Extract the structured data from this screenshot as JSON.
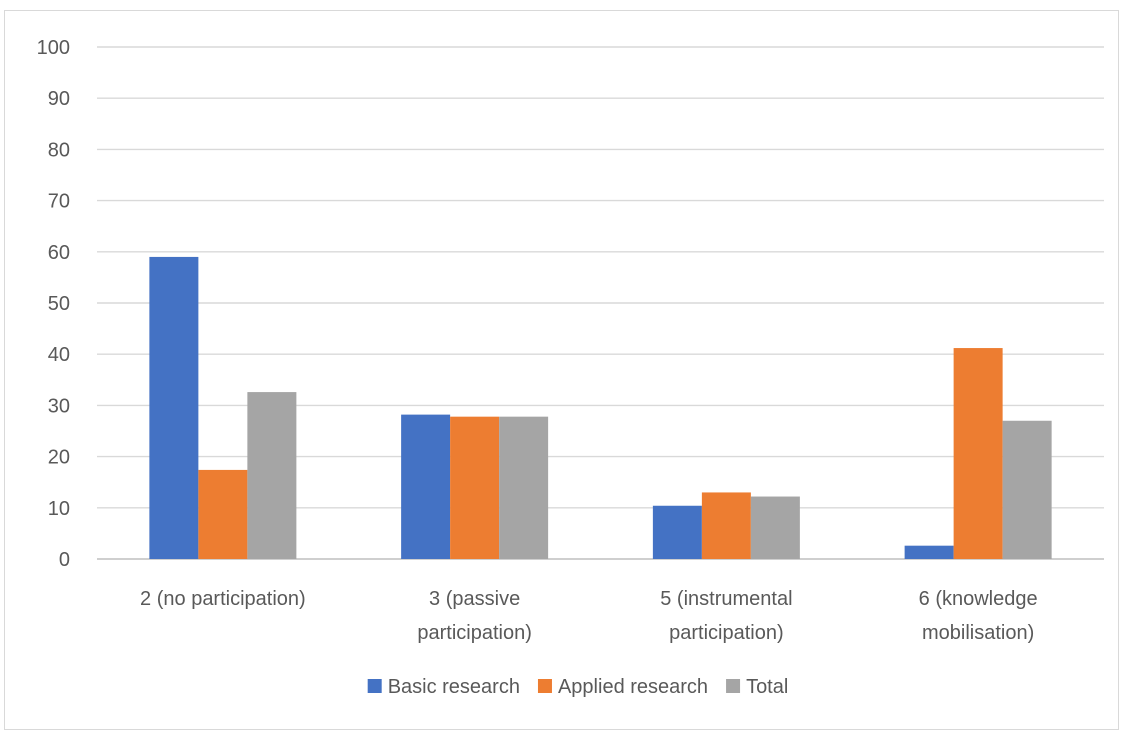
{
  "chart_data": {
    "type": "bar",
    "title": "",
    "xlabel": "",
    "ylabel": "",
    "ylim": [
      0,
      100
    ],
    "yticks": [
      0,
      10,
      20,
      30,
      40,
      50,
      60,
      70,
      80,
      90,
      100
    ],
    "grid": true,
    "legend_position": "bottom",
    "categories": [
      [
        "2 (no participation)"
      ],
      [
        "3 (passive",
        "participation)"
      ],
      [
        "5 (instrumental",
        "participation)"
      ],
      [
        "6 (knowledge",
        "mobilisation)"
      ]
    ],
    "series": [
      {
        "name": "Basic research",
        "color": "#4472c4",
        "values": [
          59,
          28.2,
          10.4,
          2.6
        ]
      },
      {
        "name": "Applied research",
        "color": "#ed7d31",
        "values": [
          17.4,
          27.8,
          13.0,
          41.2
        ]
      },
      {
        "name": "Total",
        "color": "#a5a5a5",
        "values": [
          32.6,
          27.8,
          12.2,
          27.0
        ]
      }
    ]
  }
}
